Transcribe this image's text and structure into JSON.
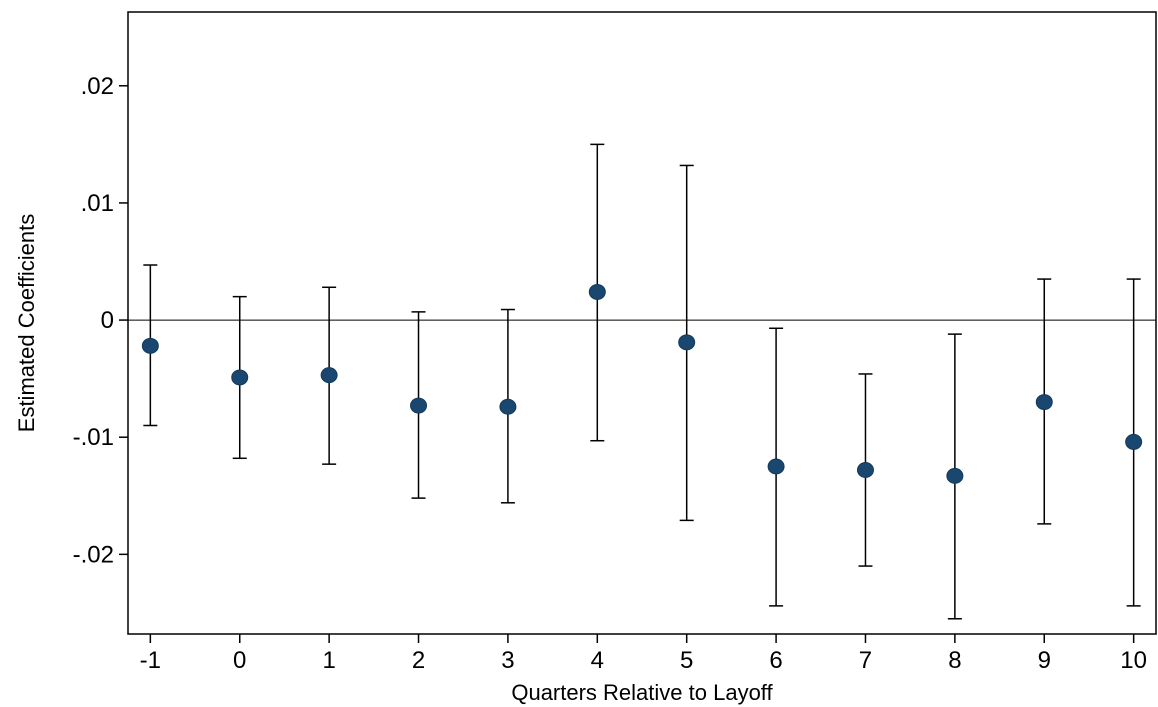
{
  "chart_data": {
    "type": "scatter",
    "subtype": "coefficient plot with confidence interval error bars",
    "xlabel": "Quarters Relative to Layoff",
    "ylabel": "Estimated Coefficients",
    "x": [
      -1,
      0,
      1,
      2,
      3,
      4,
      5,
      6,
      7,
      8,
      9,
      10
    ],
    "y": [
      -0.0022,
      -0.0049,
      -0.0047,
      -0.0073,
      -0.0074,
      0.0024,
      -0.0019,
      -0.0125,
      -0.0128,
      -0.0133,
      -0.007,
      -0.0104
    ],
    "ci_lower": [
      -0.009,
      -0.0118,
      -0.0123,
      -0.0152,
      -0.0156,
      -0.0103,
      -0.0171,
      -0.0244,
      -0.021,
      -0.0255,
      -0.0174,
      -0.0244
    ],
    "ci_upper": [
      0.0047,
      0.002,
      0.0028,
      0.0007,
      0.0009,
      0.015,
      0.0132,
      -0.0007,
      -0.0046,
      -0.0012,
      0.0035,
      0.0035
    ],
    "xticks": [
      -1,
      0,
      1,
      2,
      3,
      4,
      5,
      6,
      7,
      8,
      9,
      10
    ],
    "xtick_labels": [
      "-1",
      "0",
      "1",
      "2",
      "3",
      "4",
      "5",
      "6",
      "7",
      "8",
      "9",
      "10"
    ],
    "yticks": [
      -0.02,
      -0.01,
      0,
      0.01,
      0.02
    ],
    "ytick_labels": [
      "-.02",
      "-.01",
      "0",
      ".01",
      ".02"
    ],
    "xlim": [
      -1.25,
      10.25
    ],
    "ylim": [
      -0.0268,
      0.0263
    ],
    "reference_line_y": 0,
    "grid": false,
    "legend": "none",
    "marker_color": "#1a476f",
    "line_color": "#000000"
  }
}
